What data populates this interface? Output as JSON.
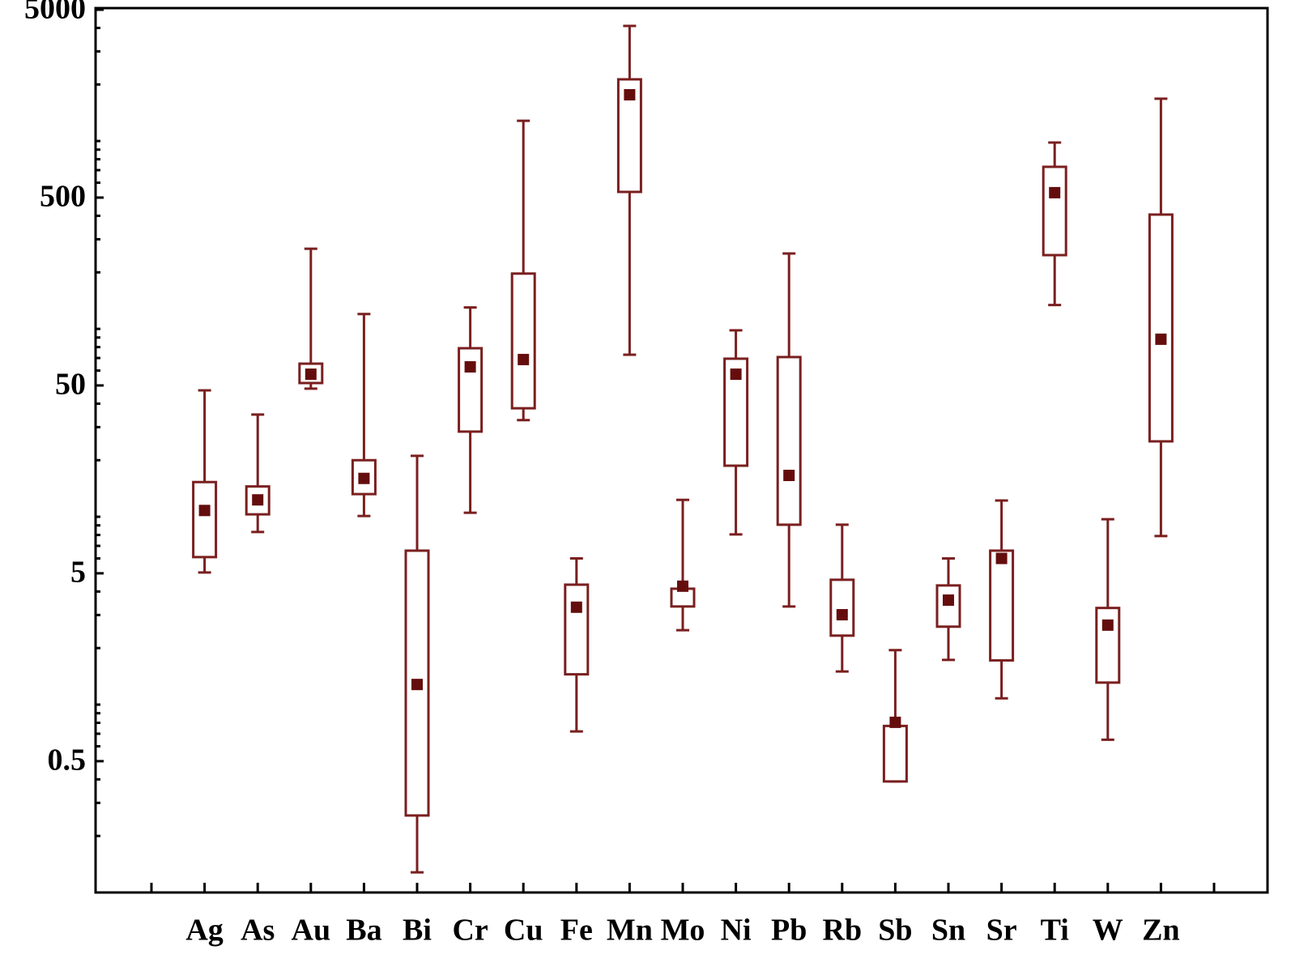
{
  "chart_data": {
    "type": "box",
    "categories": [
      "Ag",
      "As",
      "Au",
      "Ba",
      "Bi",
      "Cr",
      "Cu",
      "Fe",
      "Mn",
      "Mo",
      "Ni",
      "Pb",
      "Rb",
      "Sb",
      "Sn",
      "Sr",
      "Ti",
      "W",
      "Zn"
    ],
    "whisker_high": [
      47.1,
      35.0,
      267,
      120,
      21.1,
      130,
      1282,
      6.0,
      4100,
      12.3,
      98.2,
      252,
      9.07,
      1.95,
      6.0,
      12.2,
      982,
      9.7,
      1679
    ],
    "q3": [
      15.3,
      14.5,
      65.3,
      20.0,
      6.6,
      78.9,
      197,
      4.35,
      2130,
      4.14,
      69.4,
      70.8,
      4.62,
      0.77,
      4.31,
      6.6,
      729,
      3.27,
      406
    ],
    "median": [
      10.8,
      12.3,
      57.4,
      16.0,
      1.28,
      62.8,
      68.7,
      3.3,
      1763,
      4.27,
      57.4,
      16.6,
      3.01,
      0.805,
      3.6,
      6.0,
      531,
      2.65,
      88.1
    ],
    "q1": [
      6.1,
      10.3,
      51.5,
      13.2,
      0.257,
      28.4,
      37.8,
      1.45,
      536,
      3.33,
      18.7,
      9.07,
      2.33,
      0.39,
      2.6,
      1.72,
      247,
      1.31,
      25.2
    ],
    "whisker_low": [
      5.05,
      8.3,
      48.1,
      10.1,
      0.128,
      10.5,
      32.7,
      0.72,
      72.9,
      2.49,
      8.05,
      3.33,
      1.5,
      0.39,
      1.73,
      1.08,
      134,
      0.65,
      7.9
    ],
    "color": "#7a1f1f",
    "median_color": "#650d0d",
    "ylog": true,
    "ylim": [
      0.1,
      5000
    ],
    "yticks": [
      0.5,
      5,
      50,
      500,
      5000
    ],
    "yminor": [
      0.2,
      0.3,
      0.4,
      0.6,
      0.7,
      0.8,
      0.9,
      1,
      2,
      3,
      4,
      6,
      7,
      8,
      9,
      10,
      20,
      30,
      40,
      60,
      70,
      80,
      90,
      100,
      200,
      300,
      400,
      600,
      700,
      800,
      900,
      1000,
      2000,
      3000,
      4000
    ]
  }
}
